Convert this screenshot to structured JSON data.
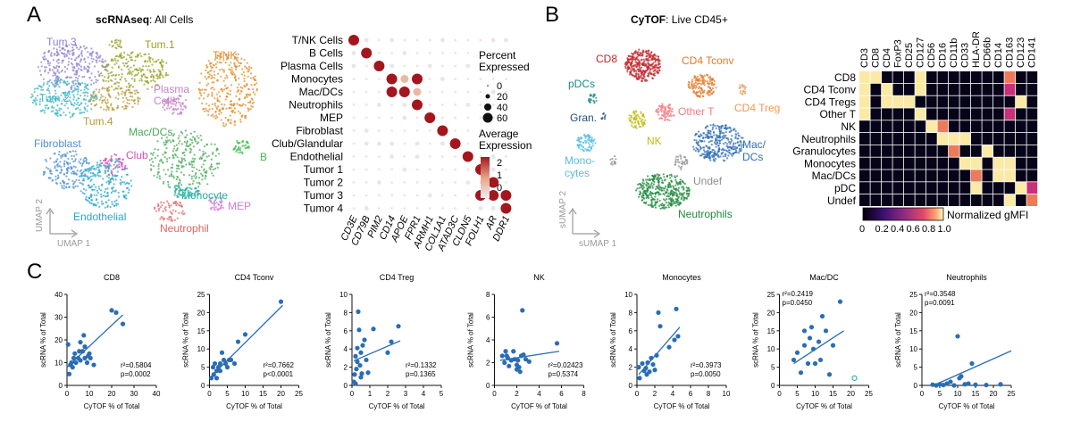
{
  "panel_letters": {
    "a": "A",
    "b": "B",
    "c": "C"
  },
  "panel_a": {
    "title_bold": "scRNAseq",
    "title_rest": ": All Cells",
    "axis_x": "UMAP 1",
    "axis_y": "UMAP 2",
    "clusters": [
      {
        "label": "Tum.3",
        "color": "#8f7fd0"
      },
      {
        "label": "Tum.1",
        "color": "#9aa024"
      },
      {
        "label": "T/NK",
        "color": "#e08e2a"
      },
      {
        "label": "Tum.2",
        "color": "#3ab5c4"
      },
      {
        "label": "Plasma\nCells",
        "color": "#c77ecb"
      },
      {
        "label": "Tum.4",
        "color": "#b59a3a"
      },
      {
        "label": "Mac/DCs",
        "color": "#4aa85a"
      },
      {
        "label": "Fibroblast",
        "color": "#4c8fd6"
      },
      {
        "label": "Club",
        "color": "#d94fb4"
      },
      {
        "label": "B",
        "color": "#3cbf4a"
      },
      {
        "label": "MEP",
        "color": "#d27fd6"
      },
      {
        "label": "Endothelial",
        "color": "#2aa6c9"
      },
      {
        "label": "Monocyte",
        "color": "#22b0a0"
      },
      {
        "label": "Neutrophil",
        "color": "#e26565"
      }
    ]
  },
  "dotplot": {
    "cell_types": [
      "T/NK Cells",
      "B Cells",
      "Plasma Cells",
      "Monocytes",
      "Mac/DCs",
      "Neutrophils",
      "MEP",
      "Fibroblast",
      "Club/Glandular",
      "Endothelial",
      "Tumor 1",
      "Tumor 2",
      "Tumor 3",
      "Tumor 4"
    ],
    "genes": [
      "CD3E",
      "CD79B",
      "PIM2",
      "CD14",
      "APOE",
      "FPR1",
      "ARMH1",
      "COL1A1",
      "ATAD3C",
      "CLDN5",
      "FOLH1",
      "AR",
      "DDR1"
    ],
    "legend_percent_title": "Percent\nExpressed",
    "legend_percent_values": [
      "0",
      "20",
      "40",
      "60"
    ],
    "legend_expr_title": "Average\nExpression",
    "legend_expr_ticks": [
      "2",
      "1",
      "0"
    ],
    "high_color": "#a3161e",
    "low_color": "#f1eef3"
  },
  "panel_b": {
    "title_bold": "CyTOF",
    "title_rest": ": Live CD45+",
    "axis_x": "sUMAP 1",
    "axis_y": "sUMAP 2",
    "clusters": [
      {
        "label": "CD8",
        "color": "#c0262b"
      },
      {
        "label": "CD4 Tconv",
        "color": "#e37a25"
      },
      {
        "label": "pDCs",
        "color": "#1e8a8a"
      },
      {
        "label": "CD4 Treg",
        "color": "#f09a52"
      },
      {
        "label": "Other T",
        "color": "#ee7e86"
      },
      {
        "label": "Gran.",
        "color": "#1f4e79"
      },
      {
        "label": "NK",
        "color": "#c2bb12"
      },
      {
        "label": "Mac/\nDCs",
        "color": "#2f6fb6"
      },
      {
        "label": "Mono-\ncytes",
        "color": "#59bde0"
      },
      {
        "label": "Undef",
        "color": "#8c8c8c"
      },
      {
        "label": "Neutrophils",
        "color": "#1f8a3c"
      }
    ]
  },
  "heatmap": {
    "rows": [
      "CD8",
      "CD4 Tconv",
      "CD4 Tregs",
      "Other T",
      "NK",
      "Neutrophils",
      "Granulocytes",
      "Monocytes",
      "Mac/DCs",
      "pDC",
      "Undef"
    ],
    "columns": [
      "CD3",
      "CD8",
      "CD4",
      "FoxP3",
      "CD25",
      "CD127",
      "CD56",
      "CD16",
      "CD11b",
      "CD33",
      "HLA-DR",
      "CD66b",
      "CD14",
      "CD163",
      "CD123",
      "CD141"
    ],
    "legend_label": "Normalized gMFI",
    "legend_ticks": [
      "0",
      "0.2",
      "0.4",
      "0.6",
      "0.8",
      "1.0"
    ]
  },
  "chart_data": [
    {
      "type": "scatter",
      "title": "CD8",
      "xlabel": "CyTOF % of Total",
      "ylabel": "scRNA % of Total",
      "xlim": [
        0,
        40
      ],
      "ylim": [
        0,
        40
      ],
      "x_ticks": [
        "0",
        "10",
        "20",
        "30",
        "40"
      ],
      "y_ticks": [
        "0",
        "10",
        "20",
        "30",
        "40"
      ],
      "stats_r2": "r²=0.5804",
      "stats_p": "p=0.0002",
      "stats_pos": "bottom-right",
      "points": [
        [
          0.5,
          18
        ],
        [
          1,
          5
        ],
        [
          1.5,
          9
        ],
        [
          2,
          10
        ],
        [
          2.5,
          8
        ],
        [
          3,
          12
        ],
        [
          3.5,
          14
        ],
        [
          4,
          10
        ],
        [
          5,
          12
        ],
        [
          5.5,
          15
        ],
        [
          6,
          11
        ],
        [
          6,
          19
        ],
        [
          7,
          15
        ],
        [
          7.5,
          22
        ],
        [
          8,
          12
        ],
        [
          8,
          17
        ],
        [
          9,
          10
        ],
        [
          9.5,
          13
        ],
        [
          10,
          14
        ],
        [
          10.5,
          12
        ],
        [
          12,
          9
        ],
        [
          20,
          33
        ],
        [
          22,
          32
        ],
        [
          25,
          27
        ]
      ],
      "fit": [
        [
          0,
          8
        ],
        [
          25,
          31
        ]
      ]
    },
    {
      "type": "scatter",
      "title": "CD4 Tconv",
      "xlabel": "CyTOF % of Total",
      "ylabel": "scRNA % of Total",
      "xlim": [
        0,
        25
      ],
      "ylim": [
        0,
        25
      ],
      "x_ticks": [
        "0",
        "5",
        "10",
        "15",
        "20",
        "25"
      ],
      "y_ticks": [
        "0",
        "5",
        "10",
        "15",
        "20",
        "25"
      ],
      "stats_r2": "r²=0.7662",
      "stats_p": "p<0.0001",
      "stats_pos": "bottom-right",
      "points": [
        [
          0.5,
          2
        ],
        [
          1,
          5
        ],
        [
          1.2,
          3
        ],
        [
          1.5,
          6
        ],
        [
          2,
          4
        ],
        [
          2,
          2
        ],
        [
          2.5,
          5
        ],
        [
          3,
          6
        ],
        [
          3,
          4
        ],
        [
          3.5,
          9
        ],
        [
          4,
          7
        ],
        [
          4.5,
          6
        ],
        [
          5,
          5
        ],
        [
          5.5,
          7
        ],
        [
          6,
          7
        ],
        [
          7,
          6
        ],
        [
          8,
          12
        ],
        [
          10,
          14
        ],
        [
          20,
          23
        ]
      ],
      "fit": [
        [
          0,
          2
        ],
        [
          20.5,
          22
        ]
      ]
    },
    {
      "type": "scatter",
      "title": "CD4 Treg",
      "xlabel": "CyTOF % of Total",
      "ylabel": "scRNA % of Total",
      "xlim": [
        0,
        5
      ],
      "ylim": [
        0,
        10
      ],
      "x_ticks": [
        "0",
        "1",
        "2",
        "3",
        "4",
        "5"
      ],
      "y_ticks": [
        "0",
        "2",
        "4",
        "6",
        "8",
        "10"
      ],
      "stats_r2": "r²=0.1332",
      "stats_p": "p=0.1365",
      "stats_pos": "bottom-right",
      "points": [
        [
          0.1,
          0.4
        ],
        [
          0.15,
          1.2
        ],
        [
          0.2,
          0.2
        ],
        [
          0.2,
          3.2
        ],
        [
          0.25,
          1.8
        ],
        [
          0.3,
          2.6
        ],
        [
          0.3,
          4.1
        ],
        [
          0.35,
          8.1
        ],
        [
          0.4,
          6.1
        ],
        [
          0.45,
          2.2
        ],
        [
          0.5,
          0.9
        ],
        [
          0.5,
          3.6
        ],
        [
          0.55,
          1.3
        ],
        [
          0.6,
          4.4
        ],
        [
          0.7,
          5
        ],
        [
          0.8,
          2.8
        ],
        [
          0.9,
          1.4
        ],
        [
          1.2,
          6.2
        ],
        [
          2,
          3.6
        ],
        [
          2.2,
          4.8
        ],
        [
          2.6,
          6.5
        ]
      ],
      "fit": [
        [
          0.1,
          2.7
        ],
        [
          2.7,
          4.9
        ]
      ]
    },
    {
      "type": "scatter",
      "title": "NK",
      "xlabel": "CyTOF % of Total",
      "ylabel": "scRNA % of Total",
      "xlim": [
        0,
        8
      ],
      "ylim": [
        0,
        8
      ],
      "x_ticks": [
        "0",
        "2",
        "4",
        "6",
        "8"
      ],
      "y_ticks": [
        "0",
        "2",
        "4",
        "6",
        "8"
      ],
      "stats_r2": "r²=0.02423",
      "stats_p": "p=0.5374",
      "stats_pos": "bottom-right",
      "points": [
        [
          0.7,
          2.6
        ],
        [
          0.9,
          2
        ],
        [
          1,
          3
        ],
        [
          1.1,
          2.6
        ],
        [
          1.2,
          2.4
        ],
        [
          1.3,
          1.7
        ],
        [
          1.5,
          2.2
        ],
        [
          1.7,
          3
        ],
        [
          1.8,
          2.3
        ],
        [
          2,
          1.8
        ],
        [
          2,
          1.4
        ],
        [
          2.1,
          2.2
        ],
        [
          2.2,
          1.6
        ],
        [
          2.3,
          1.2
        ],
        [
          2.4,
          2.6
        ],
        [
          2.5,
          6.6
        ],
        [
          2.6,
          2.7
        ],
        [
          2.8,
          2.3
        ],
        [
          3.1,
          2.1
        ],
        [
          5.6,
          3.7
        ]
      ],
      "fit": [
        [
          0.5,
          2.2
        ],
        [
          5.8,
          3
        ]
      ]
    },
    {
      "type": "scatter",
      "title": "Monocytes",
      "xlabel": "CyTOF % of Total",
      "ylabel": "scRNA % of Total",
      "xlim": [
        0,
        10
      ],
      "ylim": [
        0,
        10
      ],
      "x_ticks": [
        "0",
        "2",
        "4",
        "6",
        "8",
        "10"
      ],
      "y_ticks": [
        "0",
        "2",
        "4",
        "6",
        "8",
        "10"
      ],
      "stats_r2": "r²=0.3973",
      "stats_p": "p=0.0050",
      "stats_pos": "bottom-right",
      "points": [
        [
          0.2,
          2
        ],
        [
          0.3,
          0.8
        ],
        [
          0.6,
          2.4
        ],
        [
          0.8,
          1.6
        ],
        [
          1,
          1.9
        ],
        [
          1.1,
          1.2
        ],
        [
          1.2,
          2.5
        ],
        [
          1.4,
          1.5
        ],
        [
          1.6,
          3
        ],
        [
          1.8,
          2.3
        ],
        [
          2,
          1.7
        ],
        [
          2.2,
          3.3
        ],
        [
          2.4,
          8
        ],
        [
          2.6,
          6.5
        ],
        [
          3.6,
          4.2
        ],
        [
          4.2,
          5
        ],
        [
          4.4,
          8.4
        ],
        [
          4.6,
          5.4
        ]
      ],
      "fit": [
        [
          0.2,
          1.2
        ],
        [
          4.8,
          6.4
        ]
      ]
    },
    {
      "type": "scatter",
      "title": "Mac/DC",
      "xlabel": "CyTOF % of Total",
      "ylabel": "scRNA % of Total",
      "xlim": [
        0,
        25
      ],
      "ylim": [
        0,
        25
      ],
      "x_ticks": [
        "0",
        "5",
        "10",
        "15",
        "20",
        "25"
      ],
      "y_ticks": [
        "0",
        "5",
        "10",
        "15",
        "20",
        "25"
      ],
      "stats_r2": "r²=0.2419",
      "stats_p": "p=0.0450",
      "stats_pos": "top-left",
      "points": [
        [
          4,
          7
        ],
        [
          5,
          9
        ],
        [
          6,
          3.5
        ],
        [
          7,
          11
        ],
        [
          7,
          15
        ],
        [
          8,
          6
        ],
        [
          8.5,
          13
        ],
        [
          9,
          16
        ],
        [
          9.5,
          10
        ],
        [
          10,
          6
        ],
        [
          11,
          12
        ],
        [
          11.5,
          7
        ],
        [
          12,
          19
        ],
        [
          13,
          15
        ],
        [
          14,
          3
        ],
        [
          15,
          11
        ],
        [
          17,
          23
        ],
        [
          21,
          2,
          "open"
        ]
      ],
      "fit": [
        [
          4,
          6
        ],
        [
          18,
          15
        ]
      ]
    },
    {
      "type": "scatter",
      "title": "Neutrophils",
      "xlabel": "CyTOF % of Total",
      "ylabel": "scRNA % of Total",
      "xlim": [
        0,
        25
      ],
      "ylim": [
        0,
        25
      ],
      "x_ticks": [
        "0",
        "5",
        "10",
        "15",
        "20",
        "25"
      ],
      "y_ticks": [
        "0",
        "5",
        "10",
        "15",
        "20",
        "25"
      ],
      "stats_r2": "r²=0.3548",
      "stats_p": "p=0.0091",
      "stats_pos": "top-left",
      "points": [
        [
          3,
          0.2
        ],
        [
          4,
          0
        ],
        [
          5,
          0.3
        ],
        [
          6,
          0.1
        ],
        [
          7,
          0.5
        ],
        [
          8,
          1
        ],
        [
          9,
          0
        ],
        [
          10,
          13.5
        ],
        [
          10.5,
          2
        ],
        [
          11,
          2.5
        ],
        [
          12,
          0.3
        ],
        [
          13,
          0.5
        ],
        [
          14,
          6
        ],
        [
          15,
          0.2
        ],
        [
          18,
          0.1
        ],
        [
          22,
          0.3
        ]
      ],
      "fit": [
        [
          1,
          -1
        ],
        [
          25,
          9.5
        ]
      ]
    }
  ]
}
